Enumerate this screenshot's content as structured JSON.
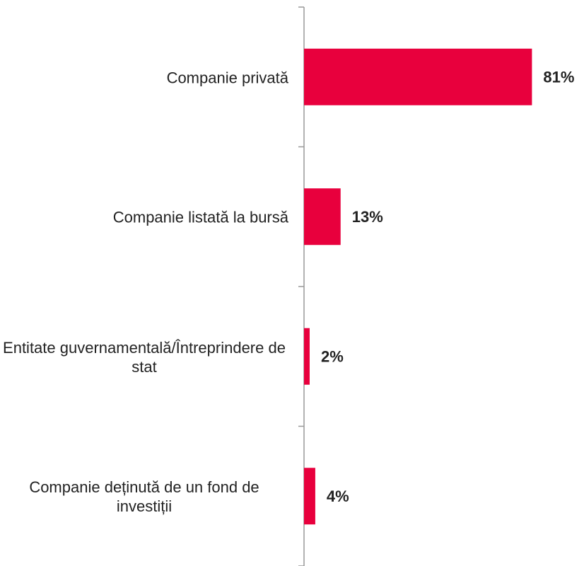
{
  "chart_data": {
    "type": "hbar",
    "categories": [
      "Companie privată",
      "Companie listată la bursă",
      "Entitate guvernamentală/Întreprindere de stat",
      "Companie deținută de un fond de investiții"
    ],
    "values": [
      81,
      13,
      2,
      4
    ],
    "value_labels": [
      "81%",
      "13%",
      "2%",
      "4%"
    ],
    "color": "#e8003d",
    "xlim": [
      0,
      100
    ]
  }
}
